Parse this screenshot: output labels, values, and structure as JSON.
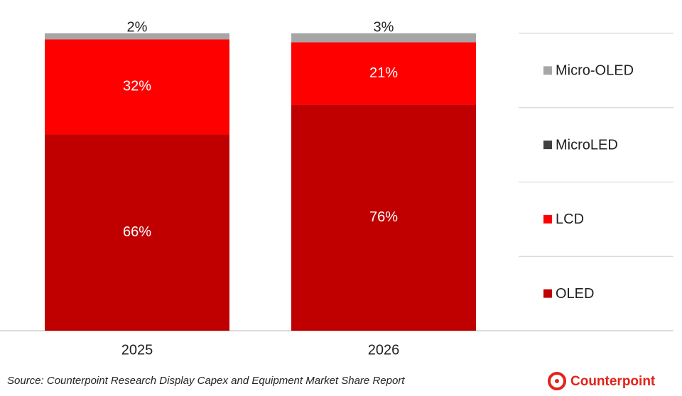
{
  "chart_data": {
    "type": "stacked-bar",
    "categories": [
      "2025",
      "2026"
    ],
    "series": [
      {
        "name": "OLED",
        "color": "#c00000",
        "values": [
          66,
          76
        ],
        "value_labels": [
          "66%",
          "76%"
        ]
      },
      {
        "name": "LCD",
        "color": "#ff0000",
        "values": [
          32,
          21
        ],
        "value_labels": [
          "32%",
          "21%"
        ]
      },
      {
        "name": "MicroLED",
        "color": "#404040",
        "values": [
          null,
          null
        ]
      },
      {
        "name": "Micro-OLED",
        "color": "#a6a6a6",
        "values": [
          2,
          3
        ],
        "value_labels": [
          "2%",
          "3%"
        ]
      }
    ],
    "ylim": [
      0,
      100
    ],
    "source": "Source: Counterpoint Research Display Capex and Equipment Market Share Report",
    "brand": "Counterpoint"
  }
}
